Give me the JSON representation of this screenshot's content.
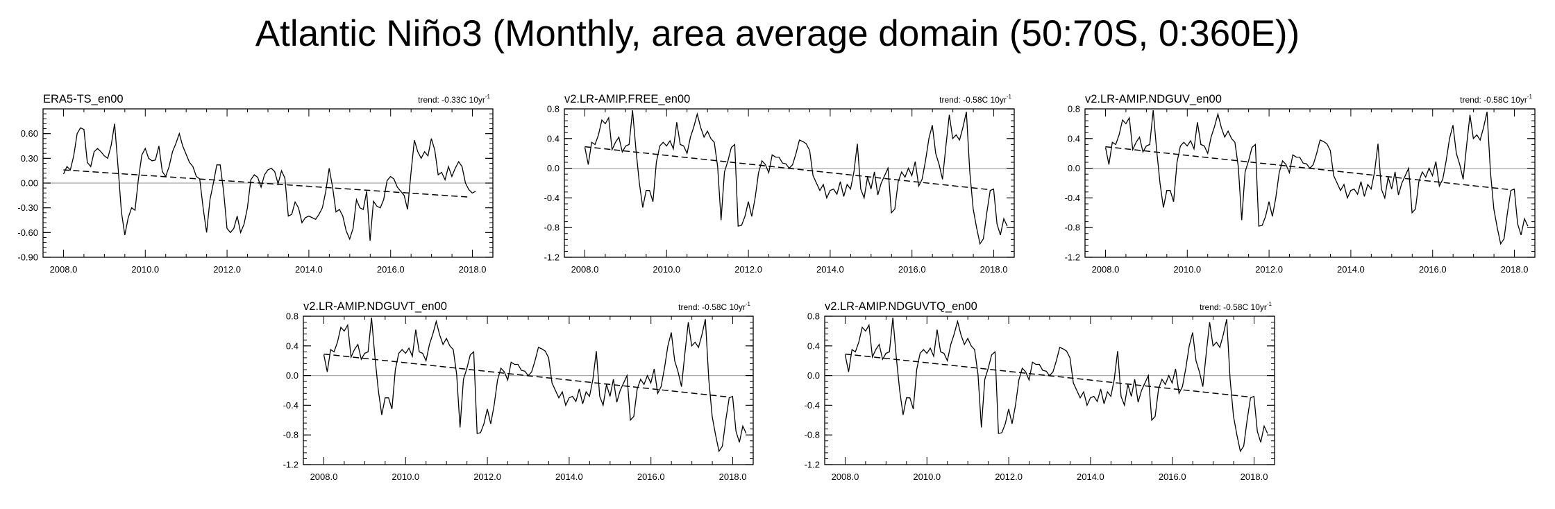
{
  "title": "Atlantic Niño3 (Monthly, area average domain (50:70S, 0:360E))",
  "colors": {
    "series": "#000000",
    "zero_line": "#aaaaaa",
    "trend": "#000000",
    "frame": "#000000"
  },
  "chart_data": [
    {
      "type": "line",
      "name": "ERA5-TS_en00",
      "trend_text": "trend: -0.33C 10yr",
      "trend_sup": "-1",
      "ylim": [
        -0.9,
        0.9
      ],
      "xlim": [
        2007.5,
        2018.5
      ],
      "yticks": [
        -0.9,
        -0.6,
        -0.3,
        0.0,
        0.3,
        0.6
      ],
      "yticklabels": [
        "-0.90",
        "-0.60",
        "-0.30",
        "0.00",
        "0.30",
        "0.60"
      ],
      "xticks": [
        2008,
        2010,
        2012,
        2014,
        2016,
        2018
      ],
      "xticklabels": [
        "2008.0",
        "2010.0",
        "2012.0",
        "2014.0",
        "2016.0",
        "2018.0"
      ],
      "x_start": 2008.0,
      "x_step": 0.0833,
      "trend_line": {
        "x": [
          2008.0,
          2017.92
        ],
        "y": [
          0.16,
          -0.17
        ]
      },
      "values": [
        0.11,
        0.2,
        0.16,
        0.33,
        0.6,
        0.67,
        0.65,
        0.25,
        0.2,
        0.38,
        0.42,
        0.38,
        0.33,
        0.3,
        0.46,
        0.72,
        0.2,
        -0.35,
        -0.63,
        -0.42,
        -0.3,
        -0.33,
        0.05,
        0.34,
        0.42,
        0.3,
        0.27,
        0.28,
        0.45,
        0.14,
        0.08,
        0.2,
        0.38,
        0.48,
        0.6,
        0.45,
        0.35,
        0.25,
        0.2,
        0.08,
        0.05,
        -0.3,
        -0.6,
        -0.2,
        0.0,
        0.22,
        0.22,
        -0.1,
        -0.55,
        -0.6,
        -0.55,
        -0.4,
        -0.6,
        -0.5,
        -0.3,
        0.04,
        0.1,
        0.07,
        -0.05,
        0.1,
        0.16,
        0.18,
        0.14,
        -0.01,
        0.15,
        0.06,
        -0.4,
        -0.38,
        -0.23,
        -0.3,
        -0.48,
        -0.42,
        -0.4,
        -0.42,
        -0.44,
        -0.38,
        -0.3,
        -0.1,
        0.18,
        -0.05,
        -0.35,
        -0.32,
        -0.4,
        -0.58,
        -0.68,
        -0.55,
        -0.2,
        -0.3,
        -0.32,
        -0.1,
        -0.7,
        -0.22,
        -0.28,
        -0.3,
        -0.2,
        0.03,
        0.08,
        0.05,
        -0.05,
        -0.1,
        -0.15,
        -0.32,
        0.12,
        0.52,
        0.38,
        0.3,
        0.38,
        0.33,
        0.54,
        0.4,
        0.1,
        0.13,
        0.04,
        0.2,
        0.08,
        0.18,
        0.26,
        0.2,
        0.0,
        -0.08,
        -0.12,
        -0.1
      ]
    },
    {
      "type": "line",
      "name": "v2.LR-AMIP.FREE_en00",
      "trend_text": "trend: -0.58C 10yr",
      "trend_sup": "-1",
      "ylim": [
        -1.2,
        0.8
      ],
      "xlim": [
        2007.5,
        2018.5
      ],
      "yticks": [
        -1.2,
        -0.8,
        -0.4,
        0.0,
        0.4,
        0.8
      ],
      "yticklabels": [
        "-1.2",
        "-0.8",
        "-0.4",
        "0.0",
        "0.4",
        "0.8"
      ],
      "xticks": [
        2008,
        2010,
        2012,
        2014,
        2016,
        2018
      ],
      "xticklabels": [
        "2008.0",
        "2010.0",
        "2012.0",
        "2014.0",
        "2016.0",
        "2018.0"
      ],
      "x_start": 2008.0,
      "x_step": 0.0833,
      "trend_line": {
        "x": [
          2008.0,
          2017.92
        ],
        "y": [
          0.29,
          -0.29
        ]
      },
      "values": [
        0.28,
        0.05,
        0.35,
        0.32,
        0.45,
        0.65,
        0.6,
        0.68,
        0.25,
        0.35,
        0.42,
        0.22,
        0.3,
        0.32,
        0.78,
        0.25,
        -0.2,
        -0.53,
        -0.3,
        -0.3,
        -0.45,
        0.08,
        0.3,
        0.35,
        0.3,
        0.37,
        0.26,
        0.62,
        0.32,
        0.3,
        0.2,
        0.42,
        0.56,
        0.73,
        0.55,
        0.42,
        0.5,
        0.4,
        0.35,
        0.02,
        -0.7,
        -0.05,
        0.1,
        0.28,
        0.32,
        -0.78,
        -0.77,
        -0.65,
        -0.45,
        -0.65,
        -0.4,
        -0.06,
        0.1,
        0.05,
        -0.06,
        0.18,
        0.15,
        0.15,
        0.07,
        0.06,
        0.0,
        0.05,
        0.2,
        0.38,
        0.36,
        0.33,
        0.24,
        -0.1,
        -0.2,
        -0.3,
        -0.22,
        -0.4,
        -0.3,
        -0.28,
        -0.35,
        -0.18,
        -0.38,
        -0.22,
        -0.28,
        -0.05,
        0.33,
        -0.28,
        -0.4,
        -0.12,
        -0.28,
        -0.05,
        -0.36,
        -0.2,
        -0.1,
        0.0,
        -0.6,
        -0.55,
        -0.18,
        -0.05,
        -0.12,
        0.0,
        -0.1,
        0.09,
        -0.24,
        -0.15,
        0.1,
        0.4,
        0.58,
        0.2,
        0.05,
        -0.15,
        0.3,
        0.72,
        0.4,
        0.45,
        0.38,
        0.55,
        0.76,
        -0.05,
        -0.55,
        -0.8,
        -1.02,
        -0.95,
        -0.6,
        -0.3,
        -0.28,
        -0.75,
        -0.9,
        -0.68,
        -0.78
      ]
    },
    {
      "type": "line",
      "name": "v2.LR-AMIP.NDGUV_en00",
      "trend_text": "trend: -0.58C 10yr",
      "trend_sup": "-1",
      "ylim": [
        -1.2,
        0.8
      ],
      "xlim": [
        2007.5,
        2018.5
      ],
      "yticks": [
        -1.2,
        -0.8,
        -0.4,
        0.0,
        0.4,
        0.8
      ],
      "yticklabels": [
        "-1.2",
        "-0.8",
        "-0.4",
        "0.0",
        "0.4",
        "0.8"
      ],
      "xticks": [
        2008,
        2010,
        2012,
        2014,
        2016,
        2018
      ],
      "xticklabels": [
        "2008.0",
        "2010.0",
        "2012.0",
        "2014.0",
        "2016.0",
        "2018.0"
      ],
      "x_start": 2008.0,
      "x_step": 0.0833,
      "trend_line": {
        "x": [
          2008.0,
          2017.92
        ],
        "y": [
          0.29,
          -0.29
        ]
      },
      "values": [
        0.28,
        0.05,
        0.35,
        0.32,
        0.45,
        0.65,
        0.6,
        0.68,
        0.25,
        0.35,
        0.42,
        0.22,
        0.3,
        0.32,
        0.78,
        0.25,
        -0.2,
        -0.53,
        -0.3,
        -0.3,
        -0.45,
        0.08,
        0.3,
        0.35,
        0.3,
        0.37,
        0.26,
        0.62,
        0.32,
        0.3,
        0.2,
        0.42,
        0.56,
        0.73,
        0.55,
        0.42,
        0.5,
        0.4,
        0.35,
        0.02,
        -0.7,
        -0.05,
        0.1,
        0.28,
        0.32,
        -0.78,
        -0.77,
        -0.65,
        -0.45,
        -0.65,
        -0.4,
        -0.06,
        0.1,
        0.05,
        -0.06,
        0.18,
        0.15,
        0.15,
        0.07,
        0.06,
        0.0,
        0.05,
        0.2,
        0.38,
        0.36,
        0.33,
        0.24,
        -0.1,
        -0.2,
        -0.3,
        -0.22,
        -0.4,
        -0.3,
        -0.28,
        -0.35,
        -0.18,
        -0.38,
        -0.22,
        -0.28,
        -0.05,
        0.33,
        -0.28,
        -0.4,
        -0.12,
        -0.28,
        -0.05,
        -0.36,
        -0.2,
        -0.1,
        0.0,
        -0.6,
        -0.55,
        -0.18,
        -0.05,
        -0.12,
        0.0,
        -0.1,
        0.09,
        -0.24,
        -0.15,
        0.1,
        0.4,
        0.58,
        0.2,
        0.05,
        -0.15,
        0.3,
        0.72,
        0.4,
        0.45,
        0.38,
        0.55,
        0.76,
        -0.05,
        -0.55,
        -0.8,
        -1.02,
        -0.95,
        -0.6,
        -0.3,
        -0.28,
        -0.75,
        -0.9,
        -0.68,
        -0.78
      ]
    },
    {
      "type": "line",
      "name": "v2.LR-AMIP.NDGUVT_en00",
      "trend_text": "trend: -0.58C 10yr",
      "trend_sup": "-1",
      "ylim": [
        -1.2,
        0.8
      ],
      "xlim": [
        2007.5,
        2018.5
      ],
      "yticks": [
        -1.2,
        -0.8,
        -0.4,
        0.0,
        0.4,
        0.8
      ],
      "yticklabels": [
        "-1.2",
        "-0.8",
        "-0.4",
        "0.0",
        "0.4",
        "0.8"
      ],
      "xticks": [
        2008,
        2010,
        2012,
        2014,
        2016,
        2018
      ],
      "xticklabels": [
        "2008.0",
        "2010.0",
        "2012.0",
        "2014.0",
        "2016.0",
        "2018.0"
      ],
      "x_start": 2008.0,
      "x_step": 0.0833,
      "trend_line": {
        "x": [
          2008.0,
          2017.92
        ],
        "y": [
          0.29,
          -0.29
        ]
      },
      "values": [
        0.28,
        0.05,
        0.35,
        0.32,
        0.45,
        0.65,
        0.6,
        0.68,
        0.25,
        0.35,
        0.42,
        0.22,
        0.3,
        0.32,
        0.78,
        0.25,
        -0.2,
        -0.53,
        -0.3,
        -0.3,
        -0.45,
        0.08,
        0.3,
        0.35,
        0.3,
        0.37,
        0.26,
        0.62,
        0.32,
        0.3,
        0.2,
        0.42,
        0.56,
        0.73,
        0.55,
        0.42,
        0.5,
        0.4,
        0.35,
        0.02,
        -0.7,
        -0.05,
        0.1,
        0.28,
        0.32,
        -0.78,
        -0.77,
        -0.65,
        -0.45,
        -0.65,
        -0.4,
        -0.06,
        0.1,
        0.05,
        -0.06,
        0.18,
        0.15,
        0.15,
        0.07,
        0.06,
        0.0,
        0.05,
        0.2,
        0.38,
        0.36,
        0.33,
        0.24,
        -0.1,
        -0.2,
        -0.3,
        -0.22,
        -0.4,
        -0.3,
        -0.28,
        -0.35,
        -0.18,
        -0.38,
        -0.22,
        -0.28,
        -0.05,
        0.33,
        -0.28,
        -0.4,
        -0.12,
        -0.28,
        -0.05,
        -0.36,
        -0.2,
        -0.1,
        0.0,
        -0.6,
        -0.55,
        -0.18,
        -0.05,
        -0.12,
        0.0,
        -0.1,
        0.09,
        -0.24,
        -0.15,
        0.1,
        0.4,
        0.58,
        0.2,
        0.05,
        -0.15,
        0.3,
        0.72,
        0.4,
        0.45,
        0.38,
        0.55,
        0.76,
        -0.05,
        -0.55,
        -0.8,
        -1.02,
        -0.95,
        -0.6,
        -0.3,
        -0.28,
        -0.75,
        -0.9,
        -0.68,
        -0.78
      ]
    },
    {
      "type": "line",
      "name": "v2.LR-AMIP.NDGUVTQ_en00",
      "trend_text": "trend: -0.58C 10yr",
      "trend_sup": "-1",
      "ylim": [
        -1.2,
        0.8
      ],
      "xlim": [
        2007.5,
        2018.5
      ],
      "yticks": [
        -1.2,
        -0.8,
        -0.4,
        0.0,
        0.4,
        0.8
      ],
      "yticklabels": [
        "-1.2",
        "-0.8",
        "-0.4",
        "0.0",
        "0.4",
        "0.8"
      ],
      "xticks": [
        2008,
        2010,
        2012,
        2014,
        2016,
        2018
      ],
      "xticklabels": [
        "2008.0",
        "2010.0",
        "2012.0",
        "2014.0",
        "2016.0",
        "2018.0"
      ],
      "x_start": 2008.0,
      "x_step": 0.0833,
      "trend_line": {
        "x": [
          2008.0,
          2017.92
        ],
        "y": [
          0.29,
          -0.29
        ]
      },
      "values": [
        0.28,
        0.05,
        0.35,
        0.32,
        0.45,
        0.65,
        0.6,
        0.68,
        0.25,
        0.35,
        0.42,
        0.22,
        0.3,
        0.32,
        0.78,
        0.25,
        -0.2,
        -0.53,
        -0.3,
        -0.3,
        -0.45,
        0.08,
        0.3,
        0.35,
        0.3,
        0.37,
        0.26,
        0.62,
        0.32,
        0.3,
        0.2,
        0.42,
        0.56,
        0.73,
        0.55,
        0.42,
        0.5,
        0.4,
        0.35,
        0.02,
        -0.7,
        -0.05,
        0.1,
        0.28,
        0.32,
        -0.78,
        -0.77,
        -0.65,
        -0.45,
        -0.65,
        -0.4,
        -0.06,
        0.1,
        0.05,
        -0.06,
        0.18,
        0.15,
        0.15,
        0.07,
        0.06,
        0.0,
        0.05,
        0.2,
        0.38,
        0.36,
        0.33,
        0.24,
        -0.1,
        -0.2,
        -0.3,
        -0.22,
        -0.4,
        -0.3,
        -0.28,
        -0.35,
        -0.18,
        -0.38,
        -0.22,
        -0.28,
        -0.05,
        0.33,
        -0.28,
        -0.4,
        -0.12,
        -0.28,
        -0.05,
        -0.36,
        -0.2,
        -0.1,
        0.0,
        -0.6,
        -0.55,
        -0.18,
        -0.05,
        -0.12,
        0.0,
        -0.1,
        0.09,
        -0.24,
        -0.15,
        0.1,
        0.4,
        0.58,
        0.2,
        0.05,
        -0.15,
        0.3,
        0.72,
        0.4,
        0.45,
        0.38,
        0.55,
        0.76,
        -0.05,
        -0.55,
        -0.8,
        -1.02,
        -0.95,
        -0.6,
        -0.3,
        -0.28,
        -0.75,
        -0.9,
        -0.68,
        -0.78
      ]
    }
  ]
}
